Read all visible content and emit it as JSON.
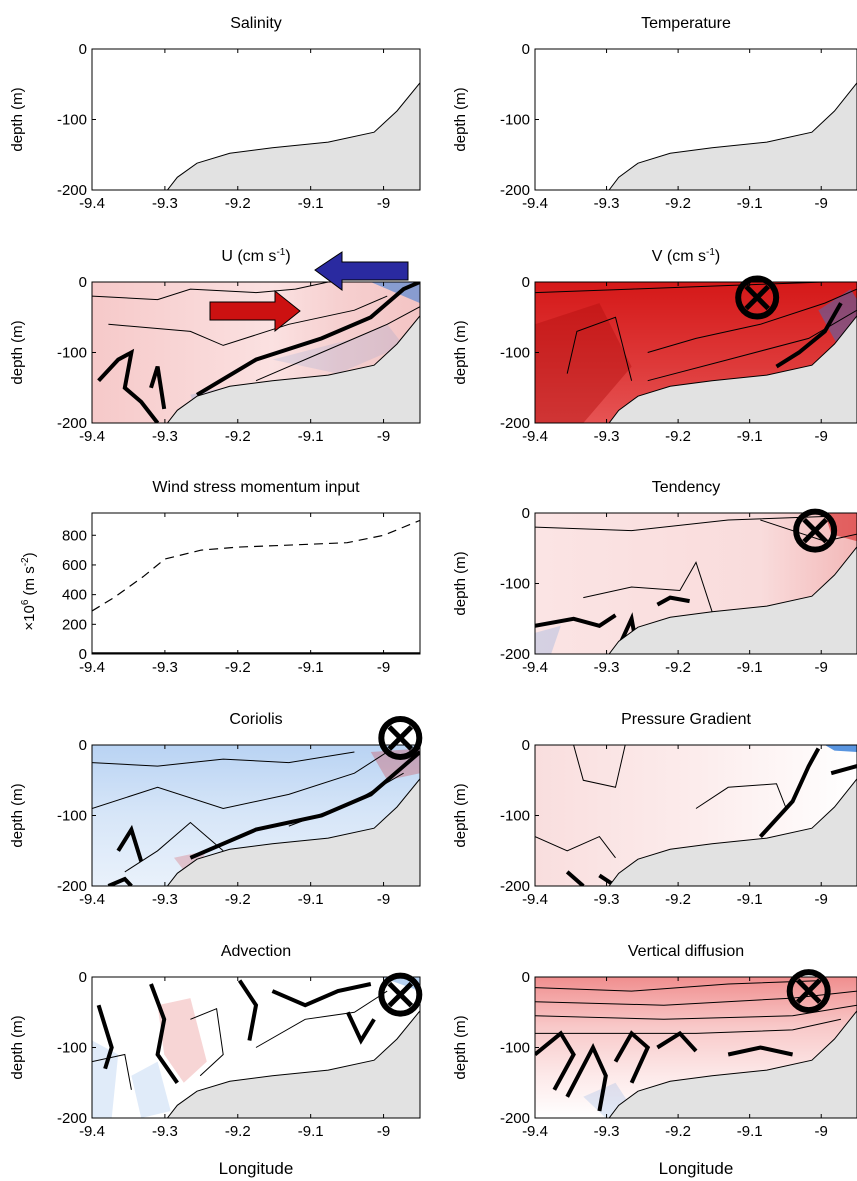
{
  "figure": {
    "xlabel": "Longitude",
    "xticks": [
      "-9.4",
      "-9.3",
      "-9.2",
      "-9.1",
      "-9"
    ],
    "depth_label": "depth (m)",
    "depth_ticks": [
      "0",
      "-100",
      "-200"
    ],
    "colors": {
      "bathymetry": "#e2e2e2",
      "positive": "#d41414",
      "negative": "#2f7ad8",
      "arrow_onshore": "#cc1111",
      "arrow_offshore": "#2a2aa0"
    }
  },
  "chart_data": [
    {
      "id": "salinity",
      "type": "contour",
      "title": "Salinity",
      "xlabel": "",
      "ylabel": "depth (m)",
      "xlim": [
        -9.4,
        -8.95
      ],
      "ylim": [
        -200,
        0
      ],
      "fill": "none"
    },
    {
      "id": "temperature",
      "type": "contour",
      "title": "Temperature",
      "xlabel": "",
      "ylabel": "depth (m)",
      "xlim": [
        -9.4,
        -8.95
      ],
      "ylim": [
        -200,
        0
      ],
      "fill": "none"
    },
    {
      "id": "u",
      "type": "heatmap",
      "title": "U (cm s",
      "title_sup": "-1",
      "title_end": ")",
      "xlabel": "",
      "ylabel": "depth (m)",
      "xlim": [
        -9.4,
        -8.95
      ],
      "ylim": [
        -200,
        0
      ],
      "fill": "u",
      "annotations": [
        "arrow-onshore",
        "arrow-offshore"
      ]
    },
    {
      "id": "v",
      "type": "heatmap",
      "title": "V (cm s",
      "title_sup": "-1",
      "title_end": ")",
      "xlabel": "",
      "ylabel": "depth (m)",
      "xlim": [
        -9.4,
        -8.95
      ],
      "ylim": [
        -200,
        0
      ],
      "fill": "v",
      "annotations": [
        "into-page-symbol"
      ]
    },
    {
      "id": "wind",
      "type": "line",
      "title": "Wind stress momentum input",
      "xlabel": "",
      "ylabel_prefix": "×10",
      "ylabel_sup": "6",
      "ylabel_unit": "(m s",
      "ylabel_unit_sup": "-2",
      "ylabel_unit_end": ")",
      "xlim": [
        -9.4,
        -8.95
      ],
      "ylim": [
        0,
        950
      ],
      "yticks": [
        "800",
        "600",
        "400",
        "200",
        "0"
      ],
      "series": [
        {
          "style": "dashed",
          "x": [
            -9.4,
            -9.37,
            -9.33,
            -9.3,
            -9.25,
            -9.2,
            -9.15,
            -9.1,
            -9.05,
            -9.0,
            -8.95
          ],
          "y": [
            290,
            380,
            520,
            640,
            700,
            720,
            730,
            740,
            750,
            800,
            900
          ]
        },
        {
          "style": "solid",
          "x": [
            -9.4,
            -8.95
          ],
          "y": [
            5,
            5
          ]
        }
      ]
    },
    {
      "id": "tendency",
      "type": "heatmap",
      "title": "Tendency",
      "xlabel": "",
      "ylabel": "depth (m)",
      "xlim": [
        -9.4,
        -8.95
      ],
      "ylim": [
        -200,
        0
      ],
      "fill": "tendency",
      "annotations": [
        "into-page-symbol"
      ]
    },
    {
      "id": "coriolis",
      "type": "heatmap",
      "title": "Coriolis",
      "xlabel": "",
      "ylabel": "depth (m)",
      "xlim": [
        -9.4,
        -8.95
      ],
      "ylim": [
        -200,
        0
      ],
      "fill": "coriolis",
      "annotations": [
        "into-page-symbol"
      ]
    },
    {
      "id": "pressure",
      "type": "heatmap",
      "title": "Pressure Gradient",
      "xlabel": "",
      "ylabel": "depth (m)",
      "xlim": [
        -9.4,
        -8.95
      ],
      "ylim": [
        -200,
        0
      ],
      "fill": "pressure"
    },
    {
      "id": "advection",
      "type": "heatmap",
      "title": "Advection",
      "xlabel": "Longitude",
      "ylabel": "depth (m)",
      "xlim": [
        -9.4,
        -8.95
      ],
      "ylim": [
        -200,
        0
      ],
      "fill": "advection",
      "annotations": [
        "into-page-symbol"
      ]
    },
    {
      "id": "vdiff",
      "type": "heatmap",
      "title": "Vertical diffusion",
      "xlabel": "Longitude",
      "ylabel": "depth (m)",
      "xlim": [
        -9.4,
        -8.95
      ],
      "ylim": [
        -200,
        0
      ],
      "fill": "vdiff",
      "annotations": [
        "into-page-symbol"
      ]
    }
  ]
}
